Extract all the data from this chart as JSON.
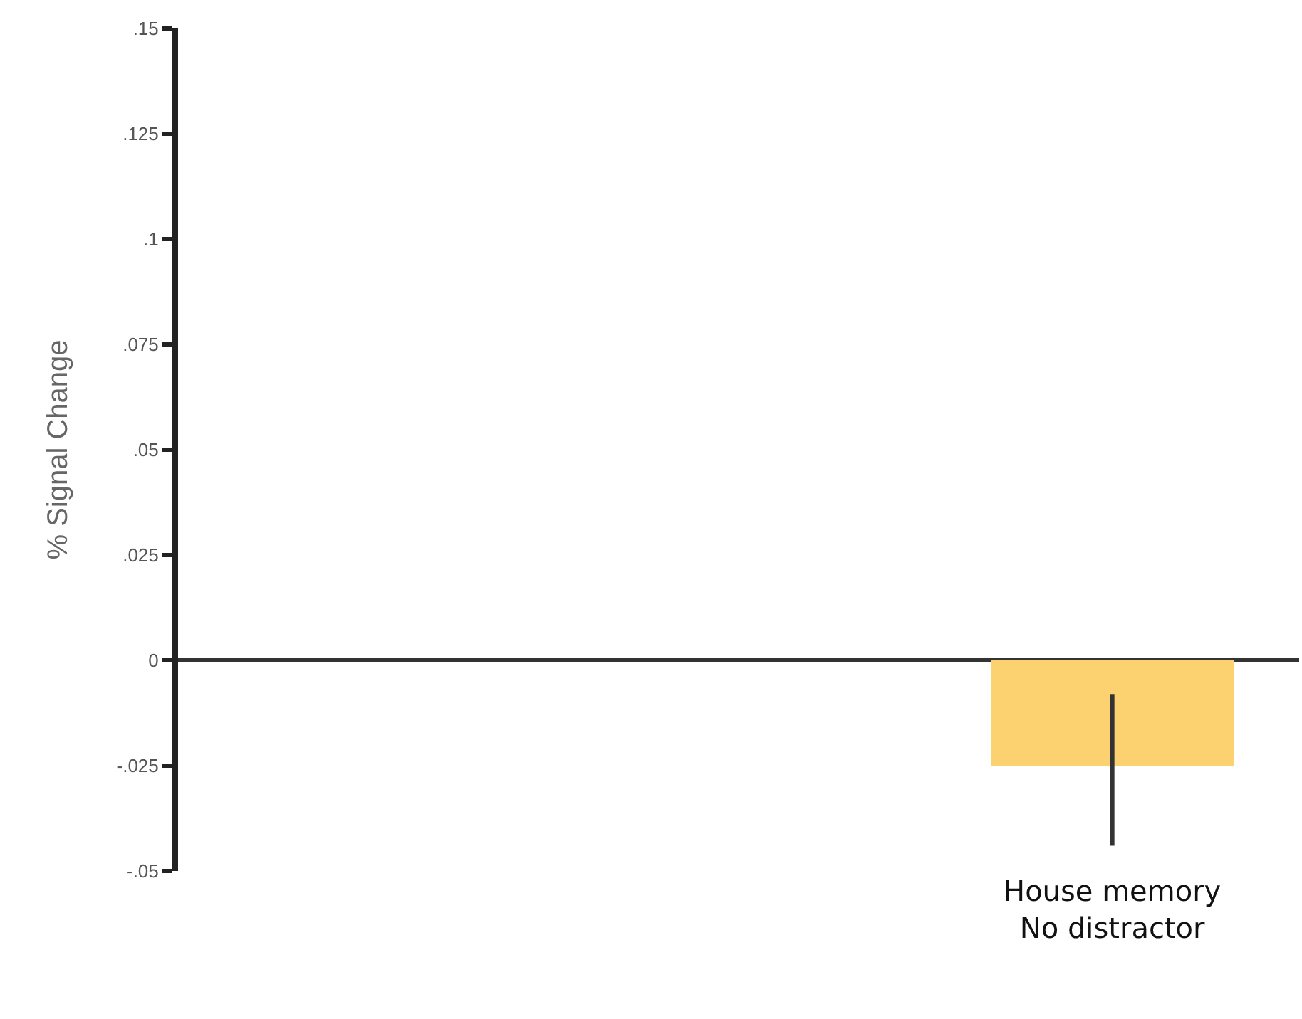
{
  "chart_data": {
    "type": "bar",
    "ylabel": "% Signal Change",
    "categories": [
      null,
      null,
      "House memory\nNo distractor"
    ],
    "values": [
      null,
      null,
      -0.025
    ],
    "errors": [
      null,
      null,
      [
        -0.044,
        -0.008
      ]
    ],
    "color": "#fcd270",
    "ylim": [
      -0.05,
      0.15
    ],
    "yticks": [
      {
        "value": -0.05,
        "label": "-.05"
      },
      {
        "value": -0.025,
        "label": "-.025"
      },
      0,
      {
        "value": 0.025,
        "label": ".025"
      },
      {
        "value": 0.05,
        "label": ".05"
      },
      {
        "value": 0.075,
        "label": ".075"
      },
      {
        "value": 0.1,
        "label": ".1"
      },
      {
        "value": 0.125,
        "label": ".125"
      },
      {
        "value": 0.15,
        "label": ".15"
      }
    ],
    "relative": false
  }
}
